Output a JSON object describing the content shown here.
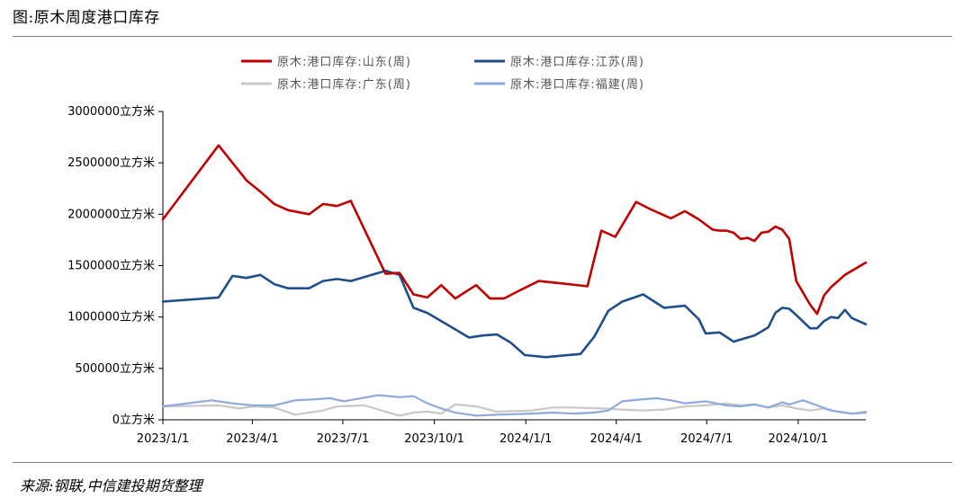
{
  "figure": {
    "title": "图:原木周度港口库存",
    "source": "来源:钢联,中信建投期货整理"
  },
  "chart_data": {
    "type": "line",
    "ylim": [
      0,
      3000000
    ],
    "xlim": [
      "2023-01-01",
      "2024-12-08"
    ],
    "yticks": [
      {
        "value": 0,
        "label": "0立方米"
      },
      {
        "value": 500000,
        "label": "500000立方米"
      },
      {
        "value": 1000000,
        "label": "1000000立方米"
      },
      {
        "value": 1500000,
        "label": "1500000立方米"
      },
      {
        "value": 2000000,
        "label": "2000000立方米"
      },
      {
        "value": 2500000,
        "label": "2500000立方米"
      },
      {
        "value": 3000000,
        "label": "3000000立方米"
      }
    ],
    "xticks": [
      {
        "value": "2023-01-01",
        "label": "2023/1/1"
      },
      {
        "value": "2023-04-01",
        "label": "2023/4/1"
      },
      {
        "value": "2023-07-01",
        "label": "2023/7/1"
      },
      {
        "value": "2023-10-01",
        "label": "2023/10/1"
      },
      {
        "value": "2024-01-01",
        "label": "2024/1/1"
      },
      {
        "value": "2024-04-01",
        "label": "2024/4/1"
      },
      {
        "value": "2024-07-01",
        "label": "2024/7/1"
      },
      {
        "value": "2024-10-01",
        "label": "2024/10/1"
      }
    ],
    "grid": false,
    "legend_position": "top",
    "series": [
      {
        "name": "原木:港口库存:山东(周)",
        "color": "#c00000",
        "x": [
          "2023-01-01",
          "2023-02-26",
          "2023-03-26",
          "2023-04-09",
          "2023-04-23",
          "2023-05-07",
          "2023-05-28",
          "2023-06-11",
          "2023-06-25",
          "2023-07-09",
          "2023-08-13",
          "2023-08-27",
          "2023-09-10",
          "2023-09-24",
          "2023-10-08",
          "2023-10-22",
          "2023-11-12",
          "2023-11-26",
          "2023-12-10",
          "2023-12-24",
          "2024-01-14",
          "2024-03-03",
          "2024-03-17",
          "2024-03-31",
          "2024-04-21",
          "2024-05-05",
          "2024-05-26",
          "2024-06-09",
          "2024-06-23",
          "2024-07-07",
          "2024-07-14",
          "2024-07-21",
          "2024-07-28",
          "2024-08-04",
          "2024-08-11",
          "2024-08-18",
          "2024-08-25",
          "2024-09-01",
          "2024-09-08",
          "2024-09-15",
          "2024-09-22",
          "2024-09-29",
          "2024-10-13",
          "2024-10-20",
          "2024-10-27",
          "2024-11-03",
          "2024-11-17",
          "2024-11-24",
          "2024-12-08"
        ],
        "values": [
          1950000,
          2670000,
          2330000,
          2220000,
          2100000,
          2040000,
          2000000,
          2100000,
          2080000,
          2130000,
          1420000,
          1430000,
          1220000,
          1190000,
          1310000,
          1180000,
          1310000,
          1180000,
          1180000,
          1250000,
          1350000,
          1300000,
          1840000,
          1780000,
          2120000,
          2050000,
          1960000,
          2030000,
          1950000,
          1850000,
          1840000,
          1840000,
          1820000,
          1760000,
          1770000,
          1740000,
          1820000,
          1830000,
          1880000,
          1850000,
          1760000,
          1350000,
          1120000,
          1030000,
          1210000,
          1290000,
          1410000,
          1450000,
          1530000
        ]
      },
      {
        "name": "原木:港口库存:江苏(周)",
        "color": "#1f4e8c",
        "x": [
          "2023-01-01",
          "2023-02-26",
          "2023-03-12",
          "2023-03-26",
          "2023-04-09",
          "2023-04-23",
          "2023-05-07",
          "2023-05-28",
          "2023-06-11",
          "2023-06-25",
          "2023-07-09",
          "2023-08-13",
          "2023-08-27",
          "2023-09-10",
          "2023-09-24",
          "2023-10-08",
          "2023-10-22",
          "2023-11-05",
          "2023-11-19",
          "2023-12-03",
          "2023-12-17",
          "2023-12-31",
          "2024-01-21",
          "2024-02-25",
          "2024-03-10",
          "2024-03-24",
          "2024-04-07",
          "2024-04-28",
          "2024-05-19",
          "2024-06-09",
          "2024-06-23",
          "2024-06-30",
          "2024-07-14",
          "2024-07-28",
          "2024-08-04",
          "2024-08-11",
          "2024-08-18",
          "2024-08-25",
          "2024-09-01",
          "2024-09-08",
          "2024-09-15",
          "2024-09-22",
          "2024-09-29",
          "2024-10-13",
          "2024-10-20",
          "2024-10-27",
          "2024-11-03",
          "2024-11-10",
          "2024-11-17",
          "2024-11-24",
          "2024-12-08"
        ],
        "values": [
          1150000,
          1190000,
          1400000,
          1380000,
          1410000,
          1320000,
          1280000,
          1280000,
          1350000,
          1370000,
          1350000,
          1450000,
          1410000,
          1090000,
          1040000,
          960000,
          880000,
          800000,
          820000,
          830000,
          750000,
          630000,
          610000,
          640000,
          810000,
          1060000,
          1150000,
          1220000,
          1090000,
          1110000,
          980000,
          840000,
          850000,
          760000,
          780000,
          800000,
          820000,
          860000,
          900000,
          1040000,
          1090000,
          1080000,
          1020000,
          890000,
          890000,
          960000,
          1000000,
          990000,
          1070000,
          990000,
          930000
        ]
      },
      {
        "name": "原木:港口库存:广东(周)",
        "color": "#c8c8c8",
        "x": [
          "2023-01-01",
          "2023-02-26",
          "2023-03-19",
          "2023-04-02",
          "2023-04-23",
          "2023-05-14",
          "2023-06-11",
          "2023-06-25",
          "2023-07-23",
          "2023-08-13",
          "2023-08-27",
          "2023-09-10",
          "2023-09-24",
          "2023-10-08",
          "2023-10-22",
          "2023-11-12",
          "2023-12-03",
          "2024-01-07",
          "2024-01-28",
          "2024-02-18",
          "2024-03-17",
          "2024-04-07",
          "2024-04-28",
          "2024-05-19",
          "2024-06-09",
          "2024-06-30",
          "2024-07-21",
          "2024-08-04",
          "2024-08-18",
          "2024-09-01",
          "2024-09-15",
          "2024-09-29",
          "2024-10-13",
          "2024-10-27",
          "2024-11-10",
          "2024-11-24",
          "2024-12-08"
        ],
        "values": [
          130000,
          140000,
          110000,
          130000,
          120000,
          50000,
          90000,
          130000,
          140000,
          80000,
          40000,
          70000,
          80000,
          60000,
          150000,
          130000,
          80000,
          90000,
          120000,
          120000,
          110000,
          100000,
          90000,
          100000,
          130000,
          140000,
          160000,
          140000,
          150000,
          120000,
          140000,
          110000,
          90000,
          110000,
          80000,
          60000,
          80000
        ]
      },
      {
        "name": "原木:港口库存:福建(周)",
        "color": "#8ea9db",
        "x": [
          "2023-01-01",
          "2023-02-19",
          "2023-03-12",
          "2023-04-02",
          "2023-04-23",
          "2023-05-14",
          "2023-06-04",
          "2023-06-18",
          "2023-07-02",
          "2023-08-06",
          "2023-08-27",
          "2023-09-10",
          "2023-09-24",
          "2023-10-08",
          "2023-10-22",
          "2023-11-12",
          "2023-12-03",
          "2024-01-07",
          "2024-01-28",
          "2024-02-18",
          "2024-03-10",
          "2024-03-24",
          "2024-04-07",
          "2024-04-28",
          "2024-05-12",
          "2024-05-26",
          "2024-06-09",
          "2024-06-30",
          "2024-07-21",
          "2024-08-04",
          "2024-08-18",
          "2024-09-01",
          "2024-09-15",
          "2024-09-22",
          "2024-10-06",
          "2024-10-20",
          "2024-11-03",
          "2024-11-24",
          "2024-12-08"
        ],
        "values": [
          130000,
          190000,
          160000,
          140000,
          140000,
          190000,
          200000,
          210000,
          180000,
          240000,
          220000,
          230000,
          160000,
          110000,
          70000,
          40000,
          50000,
          60000,
          70000,
          60000,
          70000,
          90000,
          180000,
          200000,
          210000,
          190000,
          160000,
          180000,
          140000,
          130000,
          150000,
          120000,
          170000,
          150000,
          190000,
          140000,
          90000,
          60000,
          70000
        ]
      }
    ]
  }
}
